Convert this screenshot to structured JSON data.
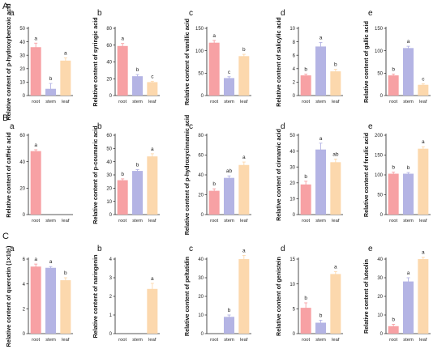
{
  "colors": {
    "root": "#f7a1a4",
    "stem": "#b4b4e4",
    "leaf": "#fcd8ad",
    "axis": "#222222"
  },
  "chart_data": [
    {
      "row": "A",
      "panel": "a",
      "row_label": "A",
      "type": "bar",
      "categories": [
        "root",
        "stem",
        "leaf"
      ],
      "values": [
        36,
        5,
        26
      ],
      "errors": [
        3,
        4,
        2
      ],
      "letters": [
        "a",
        "b",
        "a"
      ],
      "ylim": [
        0,
        50
      ],
      "yticks": [
        0,
        10,
        20,
        30,
        40,
        50
      ],
      "ylabel": "Relative content of p-hydroxybenzoic acid"
    },
    {
      "row": "A",
      "panel": "b",
      "type": "bar",
      "categories": [
        "root",
        "stem",
        "leaf"
      ],
      "values": [
        59,
        23,
        16
      ],
      "errors": [
        3,
        2,
        1
      ],
      "letters": [
        "a",
        "b",
        "c"
      ],
      "ylim": [
        0,
        80
      ],
      "yticks": [
        0,
        20,
        40,
        60,
        80
      ],
      "ylabel": "Relative content of syringic acid"
    },
    {
      "row": "A",
      "panel": "c",
      "type": "bar",
      "categories": [
        "root",
        "stem",
        "leaf"
      ],
      "values": [
        118,
        39,
        88
      ],
      "errors": [
        5,
        3,
        4
      ],
      "letters": [
        "a",
        "c",
        "b"
      ],
      "ylim": [
        0,
        150
      ],
      "yticks": [
        0,
        50,
        100,
        150
      ],
      "ylabel": "Relative content of vanillic acid"
    },
    {
      "row": "A",
      "panel": "d",
      "type": "bar",
      "categories": [
        "root",
        "stem",
        "leaf"
      ],
      "values": [
        3.0,
        7.3,
        3.6
      ],
      "errors": [
        0.2,
        0.6,
        0.3
      ],
      "letters": [
        "b",
        "a",
        "b"
      ],
      "ylim": [
        0,
        10
      ],
      "yticks": [
        0,
        2,
        4,
        6,
        8,
        10
      ],
      "ylabel": "Relative content of salicylic acid"
    },
    {
      "row": "A",
      "panel": "e",
      "type": "bar",
      "categories": [
        "root",
        "stem",
        "leaf"
      ],
      "values": [
        45,
        106,
        24
      ],
      "errors": [
        3,
        4,
        2
      ],
      "letters": [
        "b",
        "a",
        "c"
      ],
      "ylim": [
        0,
        150
      ],
      "yticks": [
        0,
        50,
        100,
        150
      ],
      "ylabel": "Relative content of gallic acid"
    },
    {
      "row": "B",
      "panel": "a",
      "row_label": "B",
      "type": "bar",
      "categories": [
        "root",
        "stem",
        "leaf"
      ],
      "values": [
        48,
        0,
        0
      ],
      "errors": [
        1,
        0,
        0
      ],
      "letters": [
        "a",
        "",
        ""
      ],
      "ylim": [
        0,
        60
      ],
      "yticks": [
        0,
        20,
        40,
        60
      ],
      "ylabel": "Relative content of caffeic acid"
    },
    {
      "row": "B",
      "panel": "b",
      "type": "bar",
      "categories": [
        "root",
        "stem",
        "leaf"
      ],
      "values": [
        26,
        33,
        44
      ],
      "errors": [
        1,
        1,
        2
      ],
      "letters": [
        "b",
        "b",
        "a"
      ],
      "ylim": [
        0,
        60
      ],
      "yticks": [
        0,
        10,
        20,
        30,
        40,
        50,
        60
      ],
      "ylabel": "Relative content of p-coumaric acid"
    },
    {
      "row": "B",
      "panel": "c",
      "type": "bar",
      "categories": [
        "root",
        "stem",
        "leaf"
      ],
      "values": [
        24,
        37,
        50
      ],
      "errors": [
        2,
        2,
        3
      ],
      "letters": [
        "b",
        "ab",
        "a"
      ],
      "ylim": [
        0,
        80
      ],
      "yticks": [
        0,
        20,
        40,
        60,
        80
      ],
      "ylabel": "Relative content of p-hydroxycinnamic acid"
    },
    {
      "row": "B",
      "panel": "d",
      "type": "bar",
      "categories": [
        "root",
        "stem",
        "leaf"
      ],
      "values": [
        19,
        41,
        33
      ],
      "errors": [
        2,
        4,
        2
      ],
      "letters": [
        "b",
        "a",
        "ab"
      ],
      "ylim": [
        0,
        50
      ],
      "yticks": [
        0,
        10,
        20,
        30,
        40,
        50
      ],
      "ylabel": "Relative content of cinnamic acid"
    },
    {
      "row": "B",
      "panel": "e",
      "type": "bar",
      "categories": [
        "root",
        "stem",
        "leaf"
      ],
      "values": [
        103,
        103,
        166
      ],
      "errors": [
        4,
        3,
        5
      ],
      "letters": [
        "b",
        "b",
        "a"
      ],
      "ylim": [
        0,
        200
      ],
      "yticks": [
        0,
        50,
        100,
        150,
        200
      ],
      "ylabel": "Relative content of ferulic acid"
    },
    {
      "row": "C",
      "panel": "a",
      "row_label": "C",
      "type": "bar",
      "categories": [
        "root",
        "stem",
        "leaf"
      ],
      "values": [
        5.4,
        5.3,
        4.3
      ],
      "errors": [
        0.2,
        0.1,
        0.2
      ],
      "letters": [
        "a",
        "a",
        "b"
      ],
      "ylim": [
        0,
        6
      ],
      "yticks": [
        0,
        2,
        4,
        6
      ],
      "ylabel": "Relative content of quercetin (1×10⁶)"
    },
    {
      "row": "C",
      "panel": "b",
      "type": "bar",
      "categories": [
        "root",
        "stem",
        "leaf"
      ],
      "values": [
        0,
        0,
        2.4
      ],
      "errors": [
        0,
        0,
        0.3
      ],
      "letters": [
        "",
        "",
        "a"
      ],
      "ylim": [
        0,
        4
      ],
      "yticks": [
        0,
        1,
        2,
        3,
        4
      ],
      "ylabel": "Relative content of naringenin"
    },
    {
      "row": "C",
      "panel": "c",
      "type": "bar",
      "categories": [
        "root",
        "stem",
        "leaf"
      ],
      "values": [
        0,
        9,
        40
      ],
      "errors": [
        0,
        1,
        2
      ],
      "letters": [
        "",
        "b",
        "a"
      ],
      "ylim": [
        0,
        40
      ],
      "yticks": [
        0,
        10,
        20,
        30,
        40
      ],
      "ylabel": "Relative content of peltatidin"
    },
    {
      "row": "C",
      "panel": "d",
      "type": "bar",
      "categories": [
        "root",
        "stem",
        "leaf"
      ],
      "values": [
        5.2,
        2.2,
        12
      ],
      "errors": [
        1.0,
        0.5,
        0.5
      ],
      "letters": [
        "b",
        "b",
        "a"
      ],
      "ylim": [
        0,
        15
      ],
      "yticks": [
        0,
        5,
        10,
        15
      ],
      "ylabel": "Relative content of genistein"
    },
    {
      "row": "C",
      "panel": "e",
      "type": "bar",
      "categories": [
        "root",
        "stem",
        "leaf"
      ],
      "values": [
        4,
        28,
        40
      ],
      "errors": [
        1,
        2,
        1
      ],
      "letters": [
        "b",
        "a",
        "a"
      ],
      "ylim": [
        0,
        40
      ],
      "yticks": [
        0,
        10,
        20,
        30,
        40
      ],
      "ylabel": "Relative content of luteolin"
    }
  ]
}
